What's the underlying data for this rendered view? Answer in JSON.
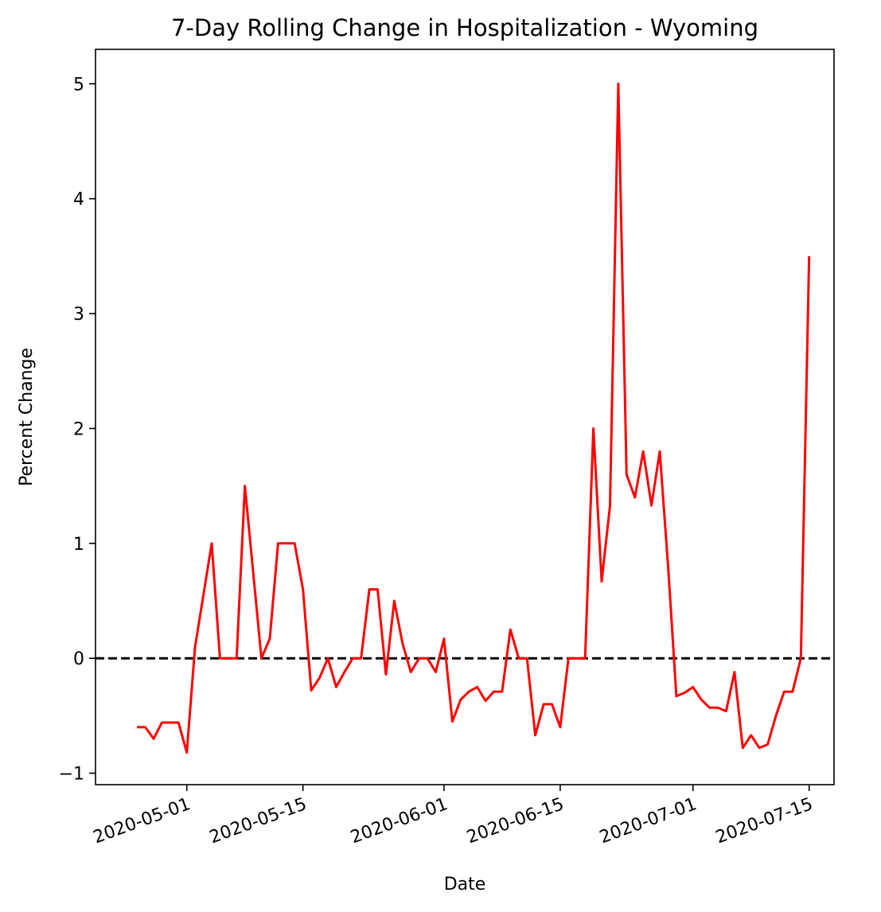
{
  "chart_data": {
    "type": "line",
    "title": "7-Day Rolling Change in Hospitalization - Wyoming",
    "xlabel": "Date",
    "ylabel": "Percent Change",
    "x_ticks": [
      "2020-05-01",
      "2020-05-15",
      "2020-06-01",
      "2020-06-15",
      "2020-07-01",
      "2020-07-15"
    ],
    "y_ticks": [
      -1,
      0,
      1,
      2,
      3,
      4,
      5
    ],
    "ylim": [
      -1.1,
      5.3
    ],
    "xlim": [
      "2020-04-20",
      "2020-07-18"
    ],
    "reference_line": {
      "y": 0,
      "style": "dashed",
      "color": "#000000"
    },
    "grid": false,
    "series": [
      {
        "color": "#ff0000",
        "x": [
          "2020-04-25",
          "2020-04-26",
          "2020-04-27",
          "2020-04-28",
          "2020-04-29",
          "2020-04-30",
          "2020-05-01",
          "2020-05-02",
          "2020-05-03",
          "2020-05-04",
          "2020-05-05",
          "2020-05-06",
          "2020-05-07",
          "2020-05-08",
          "2020-05-09",
          "2020-05-10",
          "2020-05-11",
          "2020-05-12",
          "2020-05-13",
          "2020-05-14",
          "2020-05-15",
          "2020-05-16",
          "2020-05-17",
          "2020-05-18",
          "2020-05-19",
          "2020-05-20",
          "2020-05-21",
          "2020-05-22",
          "2020-05-23",
          "2020-05-24",
          "2020-05-25",
          "2020-05-26",
          "2020-05-27",
          "2020-05-28",
          "2020-05-29",
          "2020-05-30",
          "2020-05-31",
          "2020-06-01",
          "2020-06-02",
          "2020-06-03",
          "2020-06-04",
          "2020-06-05",
          "2020-06-06",
          "2020-06-07",
          "2020-06-08",
          "2020-06-09",
          "2020-06-10",
          "2020-06-11",
          "2020-06-12",
          "2020-06-13",
          "2020-06-14",
          "2020-06-15",
          "2020-06-16",
          "2020-06-17",
          "2020-06-18",
          "2020-06-19",
          "2020-06-20",
          "2020-06-21",
          "2020-06-22",
          "2020-06-23",
          "2020-06-24",
          "2020-06-25",
          "2020-06-26",
          "2020-06-27",
          "2020-06-28",
          "2020-06-29",
          "2020-06-30",
          "2020-07-01",
          "2020-07-02",
          "2020-07-03",
          "2020-07-04",
          "2020-07-05",
          "2020-07-06",
          "2020-07-07",
          "2020-07-08",
          "2020-07-09",
          "2020-07-10",
          "2020-07-11",
          "2020-07-12",
          "2020-07-13",
          "2020-07-14",
          "2020-07-15"
        ],
        "values": [
          -0.6,
          -0.6,
          -0.7,
          -0.56,
          -0.56,
          -0.56,
          -0.82,
          0.1,
          0.55,
          1.0,
          0.0,
          0.0,
          0.0,
          1.5,
          0.75,
          0.0,
          0.17,
          1.0,
          1.0,
          1.0,
          0.6,
          -0.28,
          -0.17,
          0.0,
          -0.25,
          -0.12,
          0.0,
          0.0,
          0.6,
          0.6,
          -0.14,
          0.5,
          0.13,
          -0.12,
          0.0,
          0.0,
          -0.12,
          0.17,
          -0.55,
          -0.36,
          -0.29,
          -0.25,
          -0.37,
          -0.29,
          -0.29,
          0.25,
          0.0,
          0.0,
          -0.67,
          -0.4,
          -0.4,
          -0.6,
          0.0,
          0.0,
          0.0,
          2.0,
          0.67,
          1.33,
          5.0,
          1.6,
          1.4,
          1.8,
          1.33,
          1.8,
          0.8,
          -0.33,
          -0.3,
          -0.25,
          -0.36,
          -0.43,
          -0.43,
          -0.46,
          -0.12,
          -0.78,
          -0.67,
          -0.78,
          -0.75,
          -0.5,
          -0.29,
          -0.29,
          0.0,
          3.5
        ]
      }
    ]
  }
}
